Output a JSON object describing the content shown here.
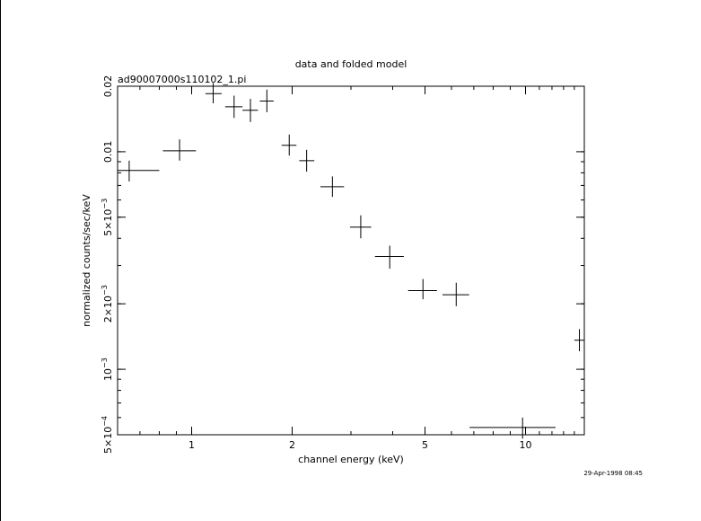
{
  "chart_data": {
    "type": "scatter",
    "title": "data and folded model",
    "subtitle": "ad90007000s110102_1.pi",
    "xlabel": "channel energy (keV)",
    "ylabel": "normalized counts/sec/keV",
    "xscale": "log",
    "yscale": "log",
    "xlim": [
      0.6,
      15
    ],
    "ylim": [
      0.0005,
      0.02
    ],
    "grid": false,
    "x_ticks": [
      {
        "value": 1,
        "label": "1"
      },
      {
        "value": 2,
        "label": "2"
      },
      {
        "value": 5,
        "label": "5"
      },
      {
        "value": 10,
        "label": "10"
      }
    ],
    "y_ticks": [
      {
        "value": 0.0005,
        "mant": "5×10",
        "exp": "−4"
      },
      {
        "value": 0.001,
        "mant": "10",
        "exp": "−3"
      },
      {
        "value": 0.002,
        "mant": "2×10",
        "exp": "−3"
      },
      {
        "value": 0.005,
        "mant": "5×10",
        "exp": "−3"
      },
      {
        "value": 0.01,
        "mant": "0.01",
        "exp": ""
      },
      {
        "value": 0.02,
        "mant": "0.02",
        "exp": ""
      }
    ],
    "series": [
      {
        "points": [
          {
            "x": 0.65,
            "xlo": 0.6,
            "xhi": 0.8,
            "y": 0.0082,
            "ylo": 0.0073,
            "yhi": 0.0091
          },
          {
            "x": 0.92,
            "xlo": 0.82,
            "xhi": 1.03,
            "y": 0.0101,
            "ylo": 0.0091,
            "yhi": 0.0114
          },
          {
            "x": 1.16,
            "xlo": 1.1,
            "xhi": 1.23,
            "y": 0.0185,
            "ylo": 0.0167,
            "yhi": 0.0207
          },
          {
            "x": 1.34,
            "xlo": 1.26,
            "xhi": 1.42,
            "y": 0.0161,
            "ylo": 0.0143,
            "yhi": 0.0181
          },
          {
            "x": 1.5,
            "xlo": 1.42,
            "xhi": 1.58,
            "y": 0.0155,
            "ylo": 0.0137,
            "yhi": 0.0175
          },
          {
            "x": 1.68,
            "xlo": 1.6,
            "xhi": 1.76,
            "y": 0.0171,
            "ylo": 0.0152,
            "yhi": 0.0193
          },
          {
            "x": 1.96,
            "xlo": 1.86,
            "xhi": 2.06,
            "y": 0.0107,
            "ylo": 0.0096,
            "yhi": 0.012
          },
          {
            "x": 2.21,
            "xlo": 2.1,
            "xhi": 2.33,
            "y": 0.0091,
            "ylo": 0.0081,
            "yhi": 0.0102
          },
          {
            "x": 2.64,
            "xlo": 2.43,
            "xhi": 2.86,
            "y": 0.0069,
            "ylo": 0.0062,
            "yhi": 0.0077
          },
          {
            "x": 3.21,
            "xlo": 2.98,
            "xhi": 3.45,
            "y": 0.0045,
            "ylo": 0.004,
            "yhi": 0.0051
          },
          {
            "x": 3.92,
            "xlo": 3.54,
            "xhi": 4.32,
            "y": 0.0033,
            "ylo": 0.0029,
            "yhi": 0.0037
          },
          {
            "x": 4.93,
            "xlo": 4.45,
            "xhi": 5.43,
            "y": 0.0023,
            "ylo": 0.0021,
            "yhi": 0.0026
          },
          {
            "x": 6.2,
            "xlo": 5.64,
            "xhi": 6.78,
            "y": 0.0022,
            "ylo": 0.00195,
            "yhi": 0.0025
          },
          {
            "x": 9.8,
            "xlo": 6.8,
            "xhi": 12.3,
            "y": 0.00054,
            "ylo": 0.00048,
            "yhi": 0.0006
          },
          {
            "x": 14.5,
            "xlo": 14.0,
            "xhi": 15.0,
            "y": 0.00136,
            "ylo": 0.00121,
            "yhi": 0.00153
          }
        ]
      }
    ]
  },
  "footer": {
    "timestamp": "29-Apr-1998 08:45"
  }
}
